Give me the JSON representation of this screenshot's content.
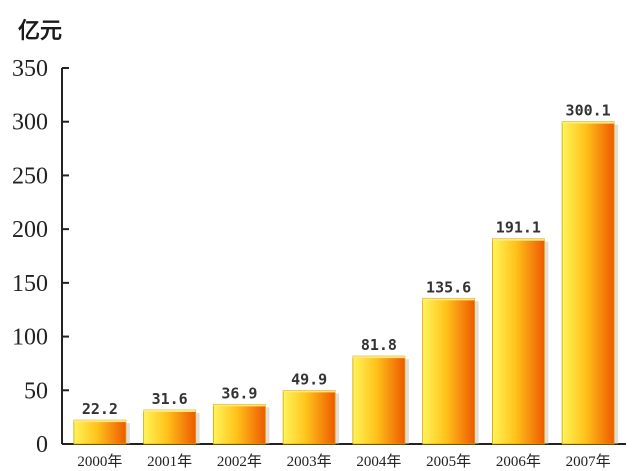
{
  "chart_data": {
    "type": "bar",
    "unit_label": "亿元",
    "categories": [
      "2000年",
      "2001年",
      "2002年",
      "2003年",
      "2004年",
      "2005年",
      "2006年",
      "2007年"
    ],
    "values": [
      22.2,
      31.6,
      36.9,
      49.9,
      81.8,
      135.6,
      191.1,
      300.1
    ],
    "data_labels": [
      "22.2",
      "31.6",
      "36.9",
      "49.9",
      "81.8",
      "135.6",
      "191.1",
      "300.1"
    ],
    "ylim": [
      0,
      350
    ],
    "yticks": [
      0,
      50,
      100,
      150,
      200,
      250,
      300,
      350
    ],
    "grid": false,
    "colors": {
      "bar_light": "#fff45a",
      "bar_mid": "#ffc21a",
      "bar_dark": "#ee5a00",
      "axis": "#222222"
    }
  }
}
